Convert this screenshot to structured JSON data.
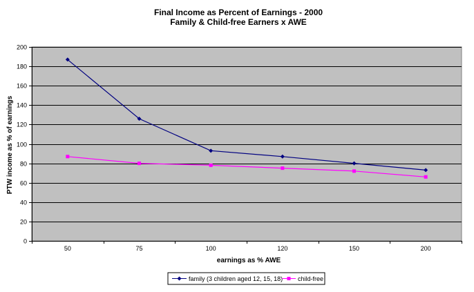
{
  "chart_data": {
    "type": "line",
    "title": "Final Income as Percent of Earnings - 2000",
    "subtitle": "Family & Child-free Earners x AWE",
    "xlabel": "earnings as % AWE",
    "ylabel": "PTW income as % of earnings",
    "categories": [
      "50",
      "75",
      "100",
      "120",
      "150",
      "200"
    ],
    "ylim": [
      0,
      200
    ],
    "yticks": [
      0,
      20,
      40,
      60,
      80,
      100,
      120,
      140,
      160,
      180,
      200
    ],
    "grid": true,
    "legend_position": "bottom",
    "plot_background": "#c0c0c0",
    "series": [
      {
        "name": "family (3 children aged 12, 15, 18)",
        "values": [
          187,
          126,
          93,
          87,
          80,
          73
        ],
        "color": "#000080",
        "marker": "diamond"
      },
      {
        "name": "child-free",
        "values": [
          87,
          80,
          78,
          75,
          72,
          66
        ],
        "color": "#ff00ff",
        "marker": "square"
      }
    ]
  }
}
